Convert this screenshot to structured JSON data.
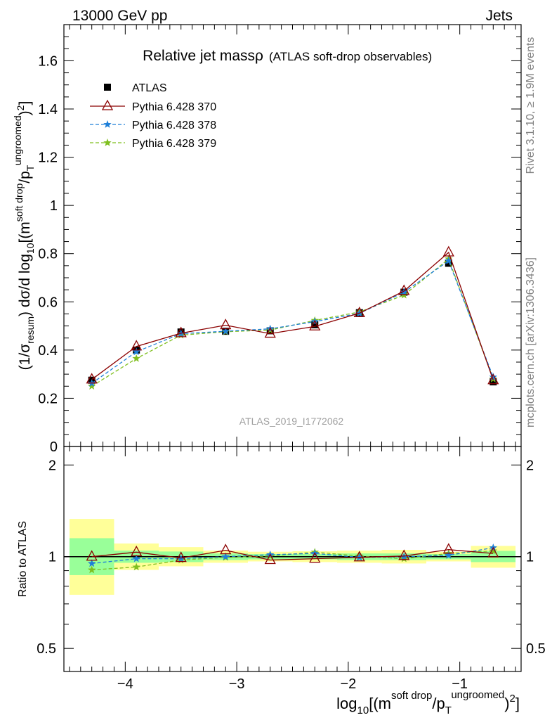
{
  "header": {
    "left": "13000 GeV pp",
    "right": "Jets"
  },
  "side": {
    "rivet": "Rivet 3.1.10, ≥ 1.9M events",
    "mcplots": "mcplots.cern.ch [arXiv:1306.3436]"
  },
  "chart_data": [
    {
      "type": "scatter",
      "title": "Relative jet massρ",
      "subtitle": "(ATLAS soft-drop observables)",
      "watermark": "ATLAS_2019_I1772062",
      "ylabel": "(1/σresum) dσ/d log10[(m soft drop/pT ungroomed)2]",
      "xlim": [
        -4.55,
        -0.45
      ],
      "ylim": [
        0,
        1.75
      ],
      "yticks": [
        0,
        0.2,
        0.4,
        0.6,
        0.8,
        1,
        1.2,
        1.4,
        1.6
      ],
      "ytick_labels": [
        "0",
        "0.2",
        "0.4",
        "0.6",
        "0.8",
        "1",
        "1.2",
        "1.4",
        "1.6"
      ],
      "x": [
        -4.3,
        -3.9,
        -3.5,
        -3.1,
        -2.7,
        -2.3,
        -1.9,
        -1.5,
        -1.1,
        -0.7
      ],
      "legend": {
        "position": "top-left"
      },
      "series": [
        {
          "name": "ATLAS",
          "color": "#000000",
          "marker": "square",
          "values": [
            0.275,
            0.4,
            0.475,
            0.478,
            0.48,
            0.505,
            0.555,
            0.64,
            0.76,
            0.268
          ]
        },
        {
          "name": "Pythia 6.428 370",
          "color": "#8b0000",
          "marker": "open-triangle",
          "line": "solid",
          "values": [
            0.278,
            0.415,
            0.47,
            0.503,
            0.468,
            0.498,
            0.553,
            0.645,
            0.805,
            0.275
          ]
        },
        {
          "name": "Pythia 6.428 378",
          "color": "#1e7fd8",
          "marker": "star",
          "line": "dashed",
          "values": [
            0.262,
            0.393,
            0.468,
            0.478,
            0.488,
            0.518,
            0.552,
            0.64,
            0.77,
            0.288
          ]
        },
        {
          "name": "Pythia 6.428 379",
          "color": "#7fbf1f",
          "marker": "star",
          "line": "dashed",
          "values": [
            0.25,
            0.365,
            0.462,
            0.476,
            0.483,
            0.523,
            0.558,
            0.628,
            0.778,
            0.28
          ]
        }
      ]
    },
    {
      "type": "scatter",
      "ylabel": "Ratio to ATLAS",
      "xlabel": "log10[(m soft drop/pT ungroomed)2]",
      "xlim": [
        -4.55,
        -0.45
      ],
      "xticks": [
        -4,
        -3,
        -2,
        -1
      ],
      "xtick_labels": [
        "−4",
        "−3",
        "−2",
        "−1"
      ],
      "ylog": true,
      "ylim": [
        0.42,
        2.3
      ],
      "yticks": [
        0.5,
        1,
        2
      ],
      "ytick_labels": [
        "0.5",
        "1",
        "2"
      ],
      "bands": {
        "edges": [
          -4.5,
          -4.1,
          -3.7,
          -3.3,
          -2.9,
          -2.5,
          -2.1,
          -1.7,
          -1.3,
          -0.9,
          -0.5
        ],
        "outer_color": "#ffff99",
        "inner_color": "#99ff99",
        "outer": [
          [
            0.75,
            1.33
          ],
          [
            0.905,
            1.105
          ],
          [
            0.93,
            1.075
          ],
          [
            0.955,
            1.047
          ],
          [
            0.965,
            1.038
          ],
          [
            0.96,
            1.042
          ],
          [
            0.955,
            1.047
          ],
          [
            0.95,
            1.053
          ],
          [
            0.965,
            1.038
          ],
          [
            0.92,
            1.085
          ]
        ],
        "inner": [
          [
            0.87,
            1.15
          ],
          [
            0.955,
            1.047
          ],
          [
            0.96,
            1.04
          ],
          [
            0.975,
            1.025
          ],
          [
            0.98,
            1.02
          ],
          [
            0.98,
            1.02
          ],
          [
            0.975,
            1.025
          ],
          [
            0.975,
            1.025
          ],
          [
            0.98,
            1.02
          ],
          [
            0.96,
            1.045
          ]
        ]
      },
      "series": [
        {
          "name": "Pythia 6.428 370",
          "color": "#8b0000",
          "marker": "open-triangle",
          "line": "solid",
          "values": [
            1.0,
            1.035,
            0.99,
            1.05,
            0.975,
            0.985,
            0.995,
            1.005,
            1.055,
            1.025
          ]
        },
        {
          "name": "Pythia 6.428 378",
          "color": "#1e7fd8",
          "marker": "star",
          "line": "dashed",
          "values": [
            0.95,
            0.985,
            0.985,
            1.0,
            1.015,
            1.025,
            0.995,
            1.0,
            1.01,
            1.07
          ]
        },
        {
          "name": "Pythia 6.428 379",
          "color": "#7fbf1f",
          "marker": "star",
          "line": "dashed",
          "values": [
            0.905,
            0.925,
            0.975,
            0.995,
            1.005,
            1.035,
            1.005,
            0.985,
            1.025,
            1.045
          ]
        }
      ]
    }
  ]
}
